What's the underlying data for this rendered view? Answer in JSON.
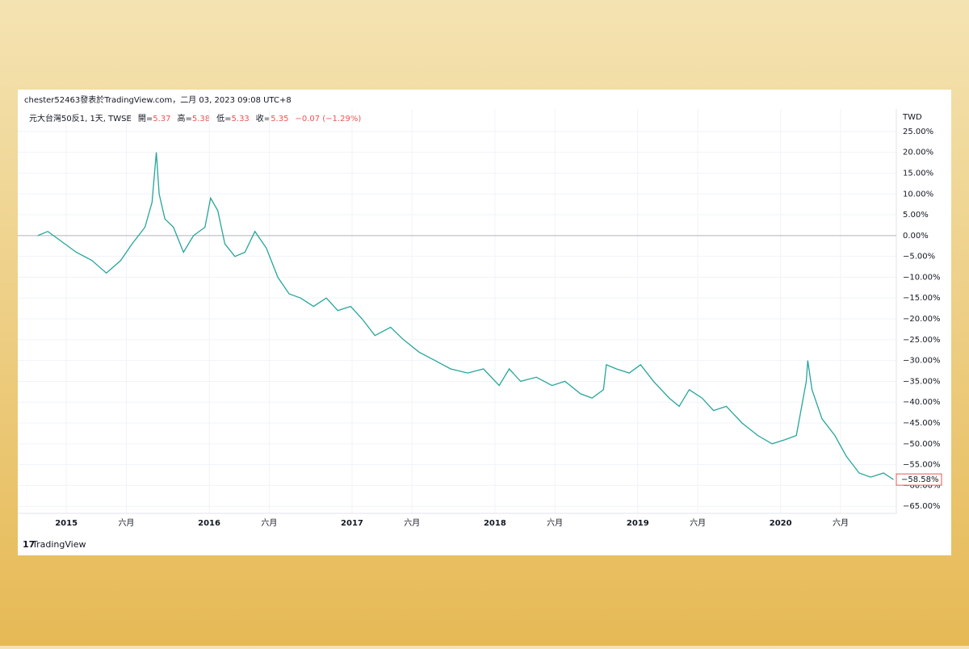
{
  "header": {
    "attribution": "chester52463發表於TradingView.com，二月 03, 2023 09:08 UTC+8",
    "ohlc": [
      {
        "label": "開=",
        "value": 5.37
      },
      {
        "label": "高=",
        "value": 5.38
      },
      {
        "label": "低=",
        "value": 5.33
      },
      {
        "label": "收=",
        "value": 5.35
      }
    ],
    "change": "−0.07 (−1.29%)",
    "currency": "TWD",
    "brand": "TradingView"
  },
  "chart_data": {
    "type": "line",
    "x": [
      2014.8,
      2014.87,
      2014.95,
      2015.07,
      2015.18,
      2015.28,
      2015.38,
      2015.46,
      2015.55,
      2015.6,
      2015.63,
      2015.65,
      2015.69,
      2015.75,
      2015.82,
      2015.89,
      2015.97,
      2016.01,
      2016.06,
      2016.11,
      2016.18,
      2016.25,
      2016.32,
      2016.4,
      2016.48,
      2016.56,
      2016.64,
      2016.73,
      2016.82,
      2016.9,
      2016.99,
      2017.07,
      2017.16,
      2017.27,
      2017.36,
      2017.47,
      2017.58,
      2017.69,
      2017.81,
      2017.92,
      2018.03,
      2018.1,
      2018.18,
      2018.29,
      2018.4,
      2018.49,
      2018.6,
      2018.68,
      2018.76,
      2018.78,
      2018.85,
      2018.94,
      2019.02,
      2019.11,
      2019.22,
      2019.29,
      2019.36,
      2019.45,
      2019.53,
      2019.62,
      2019.73,
      2019.84,
      2019.94,
      2020.03,
      2020.11,
      2020.18,
      2020.19,
      2020.22,
      2020.29,
      2020.38,
      2020.46,
      2020.55,
      2020.63,
      2020.72,
      2020.79
    ],
    "series": [
      {
        "name": "元大台灣50反1, 1天, TWSE",
        "color": "#26a69a",
        "values": [
          0,
          1,
          -1,
          -4,
          -6,
          -9,
          -6,
          -2,
          2,
          8,
          20,
          10,
          4,
          2,
          -4,
          0,
          2,
          9,
          6,
          -2,
          -5,
          -4,
          1,
          -3,
          -10,
          -14,
          -15,
          -17,
          -15,
          -18,
          -17,
          -20,
          -24,
          -22,
          -25,
          -28,
          -30,
          -32,
          -33,
          -32,
          -36,
          -32,
          -35,
          -34,
          -36,
          -35,
          -38,
          -39,
          -37,
          -31,
          -32,
          -33,
          -31,
          -35,
          -39,
          -41,
          -37,
          -39,
          -42,
          -41,
          -45,
          -48,
          -50,
          -49,
          -48,
          -35,
          -30,
          -37,
          -44,
          -48,
          -53,
          -57,
          -58,
          -57,
          -58.58
        ],
        "value_labels": [
          null,
          null,
          null,
          null,
          null,
          null,
          null,
          null,
          null,
          null,
          null,
          null,
          null,
          null,
          null,
          null,
          null,
          null,
          null,
          null,
          null,
          null,
          null,
          null,
          null,
          null,
          null,
          null,
          null,
          null,
          null,
          null,
          null,
          null,
          null,
          null,
          null,
          null,
          null,
          null,
          null,
          null,
          null,
          null,
          null,
          null,
          null,
          null,
          null,
          null,
          null,
          null,
          null,
          null,
          null,
          null,
          null,
          null,
          null,
          null,
          null,
          null,
          null,
          null,
          null,
          null,
          null,
          null,
          null,
          null,
          null,
          null,
          null,
          null,
          "−58.58%"
        ]
      }
    ],
    "xlim": [
      2014.66,
      2020.81
    ],
    "xticks": [
      {
        "value": 2015,
        "label": "2015"
      },
      {
        "value": 2015.42,
        "label": "六月"
      },
      {
        "value": 2016,
        "label": "2016"
      },
      {
        "value": 2016.42,
        "label": "六月"
      },
      {
        "value": 2017,
        "label": "2017"
      },
      {
        "value": 2017.42,
        "label": "六月"
      },
      {
        "value": 2018,
        "label": "2018"
      },
      {
        "value": 2018.42,
        "label": "六月"
      },
      {
        "value": 2019,
        "label": "2019"
      },
      {
        "value": 2019.42,
        "label": "六月"
      },
      {
        "value": 2020,
        "label": "2020"
      },
      {
        "value": 2020.42,
        "label": "六月"
      }
    ],
    "ylim": [
      -66.7,
      30.4
    ],
    "yticks": [
      {
        "value": 25,
        "label": "25.00%"
      },
      {
        "value": 20,
        "label": "20.00%"
      },
      {
        "value": 15,
        "label": "15.00%"
      },
      {
        "value": 10,
        "label": "10.00%"
      },
      {
        "value": 5,
        "label": "5.00%"
      },
      {
        "value": 0,
        "label": "0.00%"
      },
      {
        "value": -5,
        "label": "−5.00%"
      },
      {
        "value": -10,
        "label": "−10.00%"
      },
      {
        "value": -15,
        "label": "−15.00%"
      },
      {
        "value": -20,
        "label": "−20.00%"
      },
      {
        "value": -25,
        "label": "−25.00%"
      },
      {
        "value": -30,
        "label": "−30.00%"
      },
      {
        "value": -35,
        "label": "−35.00%"
      },
      {
        "value": -40,
        "label": "−40.00%"
      },
      {
        "value": -45,
        "label": "−45.00%"
      },
      {
        "value": -50,
        "label": "−50.00%"
      },
      {
        "value": -55,
        "label": "−55.00%"
      },
      {
        "value": -60,
        "label": "−60.00%"
      },
      {
        "value": -65,
        "label": "−65.00%"
      }
    ],
    "grid": true
  }
}
